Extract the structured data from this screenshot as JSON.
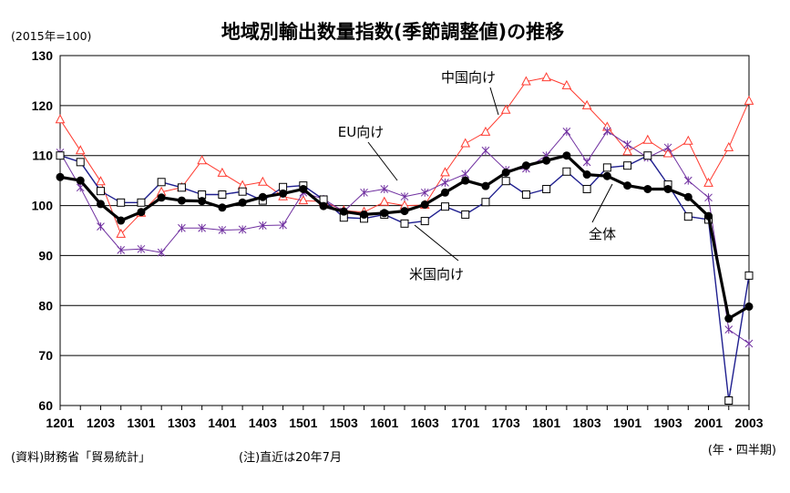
{
  "header": {
    "title": "地域別輸出数量指数(季節調整値)の推移",
    "unit_note": "(2015年=100)"
  },
  "footer": {
    "source": "(資料)財務省「貿易統計」",
    "note": "(注)直近は20年7月",
    "xunit": "(年・四半期)"
  },
  "chart_data": {
    "type": "line",
    "x": [
      "1201",
      "1202",
      "1203",
      "1204",
      "1301",
      "1302",
      "1303",
      "1304",
      "1401",
      "1402",
      "1403",
      "1404",
      "1501",
      "1502",
      "1503",
      "1504",
      "1601",
      "1602",
      "1603",
      "1604",
      "1701",
      "1702",
      "1703",
      "1704",
      "1801",
      "1802",
      "1803",
      "1804",
      "1901",
      "1902",
      "1903",
      "1904",
      "2001",
      "2002",
      "2003"
    ],
    "xtick_labels": [
      "1201",
      "1203",
      "1301",
      "1303",
      "1401",
      "1403",
      "1501",
      "1503",
      "1601",
      "1603",
      "1701",
      "1703",
      "1801",
      "1803",
      "1901",
      "1903",
      "2001",
      "2003"
    ],
    "ylim": [
      60,
      130
    ],
    "yticks": [
      60,
      70,
      80,
      90,
      100,
      110,
      120,
      130
    ],
    "grid": "horizontal",
    "series": [
      {
        "name": "中国向け",
        "color": "#ff3b30",
        "marker": "triangle-open",
        "values": [
          117.2,
          111.0,
          104.8,
          94.3,
          98.5,
          102.7,
          103.6,
          109.0,
          106.5,
          104.0,
          104.7,
          101.8,
          101.0,
          100.8,
          99.0,
          98.7,
          100.7,
          100.0,
          100.1,
          106.6,
          112.4,
          114.7,
          119.1,
          124.8,
          125.6,
          124.0,
          120.0,
          115.7,
          110.8,
          113.1,
          110.4,
          112.9,
          104.5,
          111.6,
          120.9
        ],
        "label_position": "upper-center"
      },
      {
        "name": "EU向け",
        "color": "#7030a0",
        "marker": "x",
        "values": [
          110.6,
          103.6,
          95.8,
          91.1,
          91.3,
          90.6,
          95.5,
          95.5,
          95.1,
          95.2,
          96.0,
          96.1,
          102.6,
          101.3,
          98.8,
          102.6,
          103.3,
          101.8,
          102.6,
          104.6,
          106.3,
          111.0,
          107.1,
          107.4,
          110.0,
          114.8,
          108.7,
          114.9,
          112.2,
          109.6,
          111.6,
          105.0,
          101.6,
          75.2,
          72.4
        ],
        "label_position": "left-center"
      },
      {
        "name": "米国向け",
        "color": "#1f1f8f",
        "marker": "square-open",
        "values": [
          110.0,
          108.7,
          102.9,
          100.6,
          100.6,
          104.7,
          103.6,
          102.2,
          102.2,
          102.8,
          101.0,
          103.7,
          104.0,
          101.2,
          97.6,
          97.4,
          98.2,
          96.4,
          96.9,
          99.8,
          98.2,
          100.7,
          104.9,
          102.2,
          103.3,
          106.8,
          103.3,
          107.6,
          108.0,
          110.0,
          104.2,
          97.8,
          97.2,
          61.0,
          86.0
        ],
        "label_position": "lower-center"
      },
      {
        "name": "全体",
        "color": "#000000",
        "marker": "circle-filled",
        "values": [
          105.7,
          105.0,
          100.3,
          97.0,
          98.7,
          101.6,
          101.0,
          100.9,
          99.6,
          100.6,
          101.7,
          102.4,
          103.3,
          99.9,
          98.8,
          98.2,
          98.5,
          98.9,
          100.2,
          102.6,
          105.0,
          103.9,
          106.6,
          108.0,
          109.0,
          110.0,
          106.2,
          105.9,
          104.0,
          103.3,
          103.3,
          101.7,
          97.9,
          77.4,
          79.8
        ],
        "label_position": "right-center"
      }
    ]
  }
}
